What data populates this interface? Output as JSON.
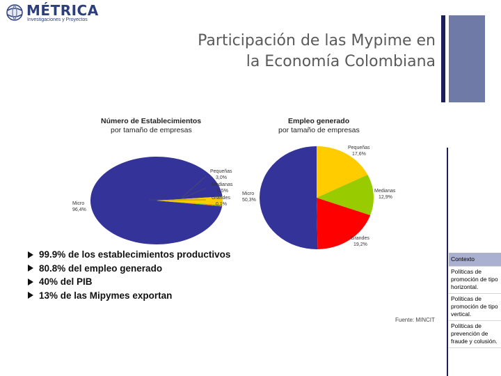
{
  "logo": {
    "name": "MÉTRICA",
    "subtitle": "Investigaciones y Proyectos"
  },
  "title": {
    "line1": "Participación de las Mypime en",
    "line2": "la Economía Colombiana"
  },
  "chart_data": [
    {
      "type": "pie",
      "title": "Número de Establecimientos por tamaño de empresas",
      "title_lines": [
        "Número de Establecimientos",
        "por tamaño de empresas"
      ],
      "slices": [
        {
          "name": "Micro",
          "value_label": "96,4%",
          "value": 96.4,
          "color": "#333399"
        },
        {
          "name": "Pequeñas",
          "value_label": "3,0%",
          "value": 3.0,
          "color": "#ffcc00"
        },
        {
          "name": "Medianas",
          "value_label": "0,5%",
          "value": 0.5,
          "color": "#99cc00"
        },
        {
          "name": "Grandes",
          "value_label": "0,1%",
          "value": 0.1,
          "color": "#ff0000"
        }
      ]
    },
    {
      "type": "pie",
      "title": "Empleo generado por tamaño de empresas",
      "title_lines": [
        "Empleo generado",
        "por tamaño de empresas"
      ],
      "slices": [
        {
          "name": "Micro",
          "value_label": "50,3%",
          "value": 50.3,
          "color": "#333399"
        },
        {
          "name": "Pequeñas",
          "value_label": "17,6%",
          "value": 17.6,
          "color": "#ffcc00"
        },
        {
          "name": "Medianas",
          "value_label": "12,9%",
          "value": 12.9,
          "color": "#99cc00"
        },
        {
          "name": "Grandes",
          "value_label": "19,2%",
          "value": 19.2,
          "color": "#ff0000"
        }
      ]
    }
  ],
  "bullets": [
    "99.9% de los establecimientos productivos",
    "80.8% del empleo generado",
    "40% del PIB",
    "13% de las Mipymes exportan"
  ],
  "source": "Fuente: MINCIT",
  "nav": [
    {
      "label": "Contexto",
      "active": true
    },
    {
      "label": "Políticas de promoción de tipo horizontal.",
      "active": false
    },
    {
      "label": "Políticas de promoción de tipo vertical.",
      "active": false
    },
    {
      "label": "Políticas de prevención de fraude y colusión.",
      "active": false
    }
  ]
}
